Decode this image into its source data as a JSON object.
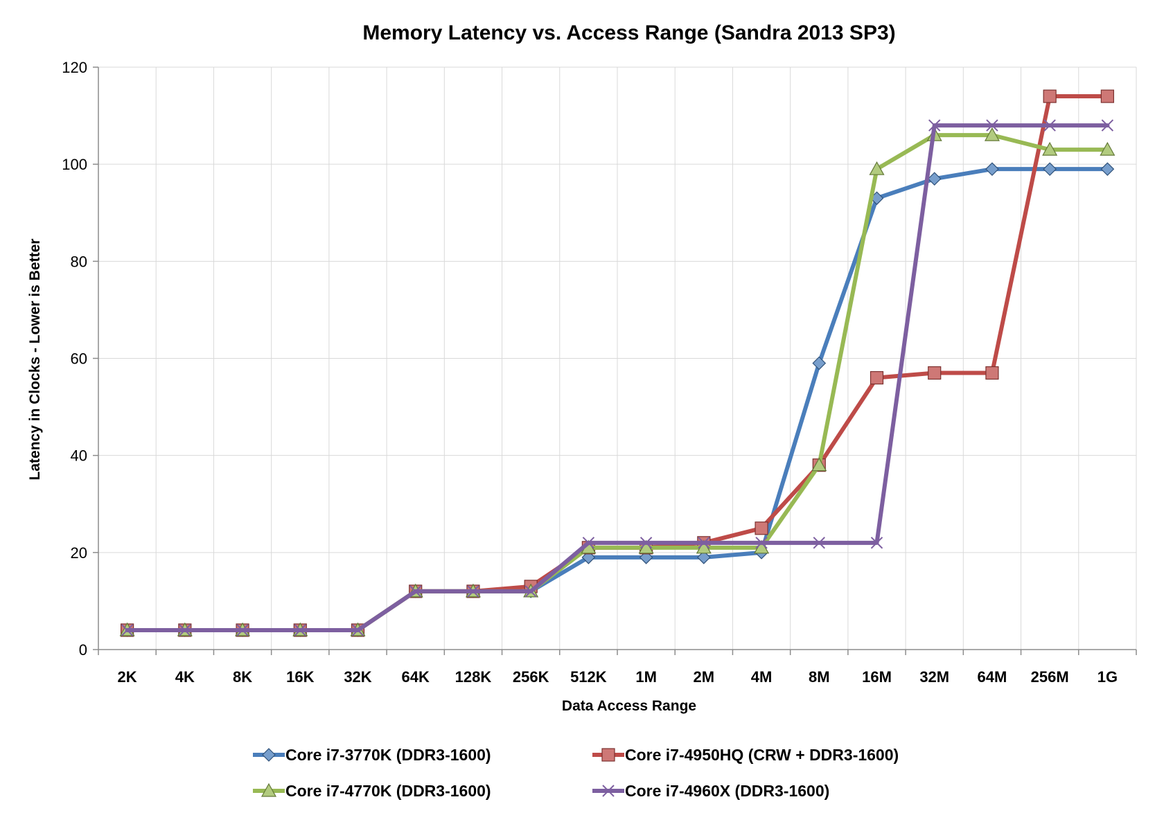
{
  "chart_data": {
    "type": "line",
    "title": "Memory Latency vs. Access Range (Sandra 2013 SP3)",
    "xlabel": "Data Access Range",
    "ylabel": "Latency in Clocks - Lower is Better",
    "ylim": [
      0,
      120
    ],
    "yticks": [
      0,
      20,
      40,
      60,
      80,
      100,
      120
    ],
    "categories": [
      "2K",
      "4K",
      "8K",
      "16K",
      "32K",
      "64K",
      "128K",
      "256K",
      "512K",
      "1M",
      "2M",
      "4M",
      "8M",
      "16M",
      "32M",
      "64M",
      "256M",
      "1G"
    ],
    "grid": true,
    "legend_position": "bottom",
    "series": [
      {
        "name": "Core i7-3770K (DDR3-1600)",
        "color": "#4a7ebb",
        "marker": "diamond",
        "values": [
          4,
          4,
          4,
          4,
          4,
          12,
          12,
          12,
          19,
          19,
          19,
          20,
          59,
          93,
          97,
          99,
          99,
          99
        ]
      },
      {
        "name": "Core i7-4950HQ (CRW + DDR3-1600)",
        "color": "#be4b48",
        "marker": "square",
        "values": [
          4,
          4,
          4,
          4,
          4,
          12,
          12,
          13,
          21,
          21,
          22,
          25,
          38,
          56,
          57,
          57,
          114,
          114
        ]
      },
      {
        "name": "Core i7-4770K (DDR3-1600)",
        "color": "#98b954",
        "marker": "triangle",
        "values": [
          4,
          4,
          4,
          4,
          4,
          12,
          12,
          12,
          21,
          21,
          21,
          21,
          38,
          99,
          106,
          106,
          103,
          103
        ]
      },
      {
        "name": "Core i7-4960X (DDR3-1600)",
        "color": "#7d5fa0",
        "marker": "x",
        "values": [
          4,
          4,
          4,
          4,
          4,
          12,
          12,
          12,
          22,
          22,
          22,
          22,
          22,
          22,
          108,
          108,
          108,
          108
        ]
      }
    ]
  }
}
